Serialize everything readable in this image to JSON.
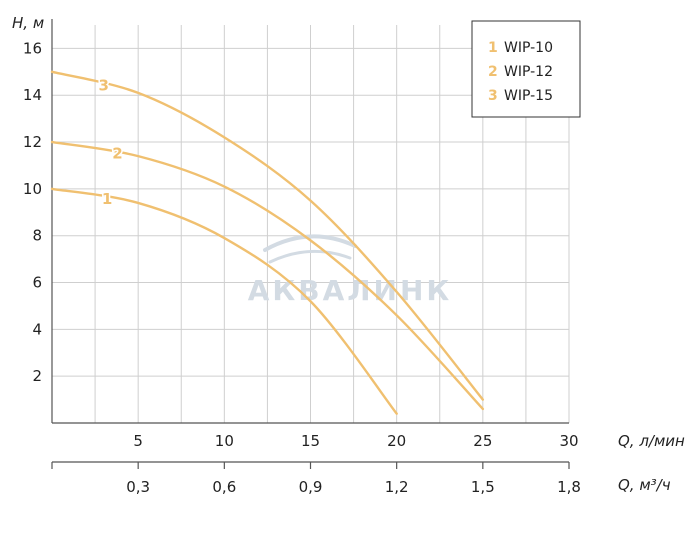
{
  "chart_data": {
    "type": "line",
    "x": [
      0,
      5,
      10,
      15,
      20,
      25,
      30
    ],
    "xlabel": "Q, л/мин",
    "xlim": [
      0,
      30
    ],
    "x_ticks": [
      5,
      10,
      15,
      20,
      25,
      30
    ],
    "x_tick_labels": [
      "5",
      "10",
      "15",
      "20",
      "25",
      "30"
    ],
    "secondary_xlabel": "Q, м³/ч",
    "secondary_x_ticks": [
      0,
      5,
      10,
      15,
      20,
      25,
      30
    ],
    "secondary_x_tick_labels": [
      "",
      "0,3",
      "0,6",
      "0,9",
      "1,2",
      "1,5",
      "1,8"
    ],
    "ylabel": "H, м",
    "ylim": [
      0,
      17
    ],
    "y_ticks": [
      2,
      4,
      6,
      8,
      10,
      12,
      14,
      16
    ],
    "y_tick_labels": [
      "2",
      "4",
      "6",
      "8",
      "10",
      "12",
      "14",
      "16"
    ],
    "grid": true,
    "legend_position": "top-right",
    "series": [
      {
        "name": "WIP-10",
        "label": "1",
        "color": "#f0c070",
        "points": [
          [
            0,
            10
          ],
          [
            5,
            9.4
          ],
          [
            10,
            7.9
          ],
          [
            15,
            5.2
          ],
          [
            20,
            0.4
          ]
        ]
      },
      {
        "name": "WIP-12",
        "label": "2",
        "color": "#f0c070",
        "points": [
          [
            0,
            12
          ],
          [
            5,
            11.4
          ],
          [
            10,
            10.1
          ],
          [
            15,
            7.8
          ],
          [
            20,
            4.6
          ],
          [
            25,
            0.6
          ]
        ]
      },
      {
        "name": "WIP-15",
        "label": "3",
        "color": "#f0c070",
        "points": [
          [
            0,
            15
          ],
          [
            5,
            14.1
          ],
          [
            10,
            12.2
          ],
          [
            15,
            9.5
          ],
          [
            20,
            5.6
          ],
          [
            25,
            1
          ]
        ]
      }
    ],
    "watermark": "АКВАЛИНК"
  }
}
